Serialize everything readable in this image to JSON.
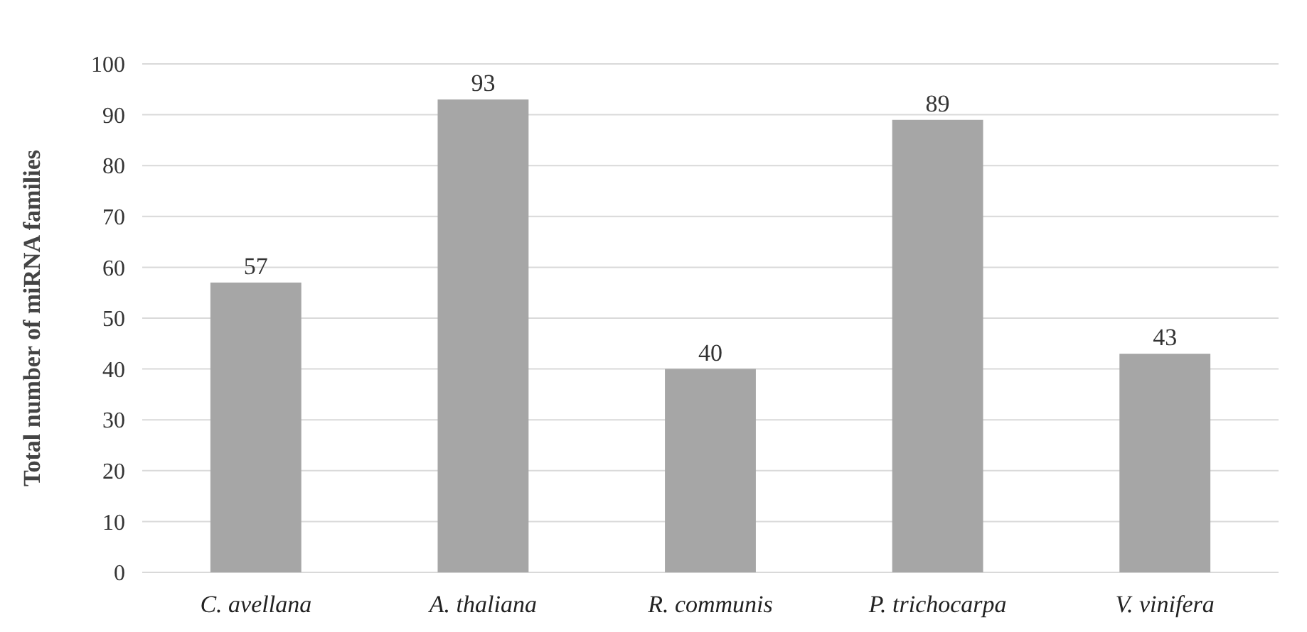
{
  "chart_data": {
    "type": "bar",
    "ylabel": "Total number of miRNA families",
    "categories": [
      "C. avellana",
      "A. thaliana",
      "R. communis",
      "P. trichocarpa",
      "V. vinifera"
    ],
    "values": [
      57,
      93,
      40,
      89,
      43
    ],
    "color": "#a6a6a6",
    "ylim": [
      0,
      100
    ],
    "yticks": [
      0,
      10,
      20,
      30,
      40,
      50,
      60,
      70,
      80,
      90,
      100
    ],
    "grid": "y",
    "data_labels": true
  }
}
